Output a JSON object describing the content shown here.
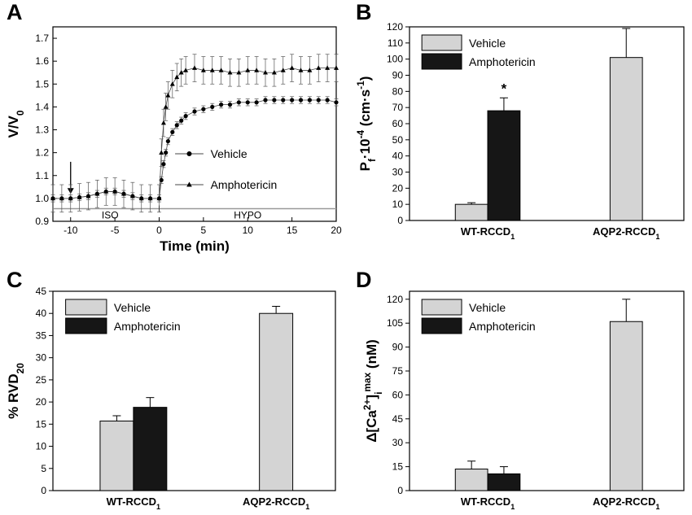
{
  "chart_data": [
    {
      "panel": "A",
      "type": "line",
      "xlabel": "Time (min)",
      "ylabel": "V/V",
      "ylabel_sub": "0",
      "xlim": [
        -12,
        20
      ],
      "ylim": [
        0.9,
        1.75
      ],
      "xticks": [
        -10,
        -5,
        0,
        5,
        10,
        15,
        20
      ],
      "yticks": [
        0.9,
        1.0,
        1.1,
        1.2,
        1.3,
        1.4,
        1.5,
        1.6,
        1.7
      ],
      "annotations": {
        "iso": "ISO",
        "hypo": "HYPO",
        "arrow_x": -10
      },
      "series": [
        {
          "name": "Vehicle",
          "marker": "circle",
          "x": [
            -12,
            -11,
            -10,
            -9,
            -8,
            -7,
            -6,
            -5,
            -4,
            -3,
            -2,
            -1,
            0,
            0.25,
            0.5,
            0.75,
            1,
            1.5,
            2,
            2.5,
            3,
            4,
            5,
            6,
            7,
            8,
            9,
            10,
            11,
            12,
            13,
            14,
            15,
            16,
            17,
            18,
            19,
            20
          ],
          "y": [
            1.0,
            1.0,
            1.0,
            1.005,
            1.01,
            1.02,
            1.03,
            1.03,
            1.02,
            1.01,
            1.0,
            1.0,
            1.0,
            1.08,
            1.15,
            1.2,
            1.25,
            1.29,
            1.32,
            1.34,
            1.36,
            1.38,
            1.39,
            1.4,
            1.41,
            1.41,
            1.42,
            1.42,
            1.42,
            1.43,
            1.43,
            1.43,
            1.43,
            1.43,
            1.43,
            1.43,
            1.43,
            1.42
          ],
          "err": 0.015
        },
        {
          "name": "Amphotericin",
          "marker": "triangle",
          "x": [
            -12,
            -11,
            -10,
            -9,
            -8,
            -7,
            -6,
            -5,
            -4,
            -3,
            -2,
            -1,
            0,
            0.25,
            0.5,
            0.75,
            1,
            1.5,
            2,
            2.5,
            3,
            4,
            5,
            6,
            7,
            8,
            9,
            10,
            11,
            12,
            13,
            14,
            15,
            16,
            17,
            18,
            19,
            20
          ],
          "y": [
            1.0,
            1.0,
            1.0,
            1.005,
            1.01,
            1.02,
            1.03,
            1.03,
            1.02,
            1.01,
            1.0,
            1.0,
            1.0,
            1.2,
            1.33,
            1.4,
            1.45,
            1.5,
            1.53,
            1.55,
            1.56,
            1.57,
            1.56,
            1.56,
            1.56,
            1.55,
            1.55,
            1.56,
            1.56,
            1.55,
            1.55,
            1.56,
            1.57,
            1.56,
            1.56,
            1.57,
            1.57,
            1.57
          ],
          "err": 0.06
        }
      ]
    },
    {
      "panel": "B",
      "type": "bar",
      "ylabel_parts": [
        "P",
        "f",
        "·10",
        "-4",
        " (cm·s",
        "-1",
        ")"
      ],
      "ylim": [
        0,
        120
      ],
      "yticks": [
        0,
        10,
        20,
        30,
        40,
        50,
        60,
        70,
        80,
        90,
        100,
        110,
        120
      ],
      "categories": [
        {
          "main": "WT-RCCD",
          "sub": "1"
        },
        {
          "main": "AQP2-RCCD",
          "sub": "1"
        }
      ],
      "series": [
        {
          "name": "Vehicle",
          "color": "#d4d4d4",
          "values": [
            10,
            101
          ],
          "errors": [
            1,
            18
          ]
        },
        {
          "name": "Amphotericin",
          "color": "#161616",
          "values": [
            68,
            null
          ],
          "errors": [
            8,
            null
          ]
        }
      ],
      "significance": {
        "label": "*",
        "category": 0,
        "series": 1
      }
    },
    {
      "panel": "C",
      "type": "bar",
      "ylabel_parts": [
        "% RVD",
        "20"
      ],
      "ylim": [
        0,
        45
      ],
      "yticks": [
        0,
        5,
        10,
        15,
        20,
        25,
        30,
        35,
        40,
        45
      ],
      "categories": [
        {
          "main": "WT-RCCD",
          "sub": "1"
        },
        {
          "main": "AQP2-RCCD",
          "sub": "1"
        }
      ],
      "series": [
        {
          "name": "Vehicle",
          "color": "#d4d4d4",
          "values": [
            15.7,
            40
          ],
          "errors": [
            1.2,
            1.6
          ]
        },
        {
          "name": "Amphotericin",
          "color": "#161616",
          "values": [
            18.8,
            null
          ],
          "errors": [
            2.2,
            null
          ]
        }
      ]
    },
    {
      "panel": "D",
      "type": "bar",
      "ylabel_parts": [
        "Δ[Ca",
        "2+",
        "]",
        "i",
        "max",
        " (nM)"
      ],
      "ylim": [
        0,
        125
      ],
      "yticks": [
        0,
        15,
        30,
        45,
        60,
        75,
        90,
        105,
        120
      ],
      "categories": [
        {
          "main": "WT-RCCD",
          "sub": "1"
        },
        {
          "main": "AQP2-RCCD",
          "sub": "1"
        }
      ],
      "series": [
        {
          "name": "Vehicle",
          "color": "#d4d4d4",
          "values": [
            13.5,
            106
          ],
          "errors": [
            5,
            14
          ]
        },
        {
          "name": "Amphotericin",
          "color": "#161616",
          "values": [
            10.5,
            null
          ],
          "errors": [
            4.5,
            null
          ]
        }
      ]
    }
  ]
}
